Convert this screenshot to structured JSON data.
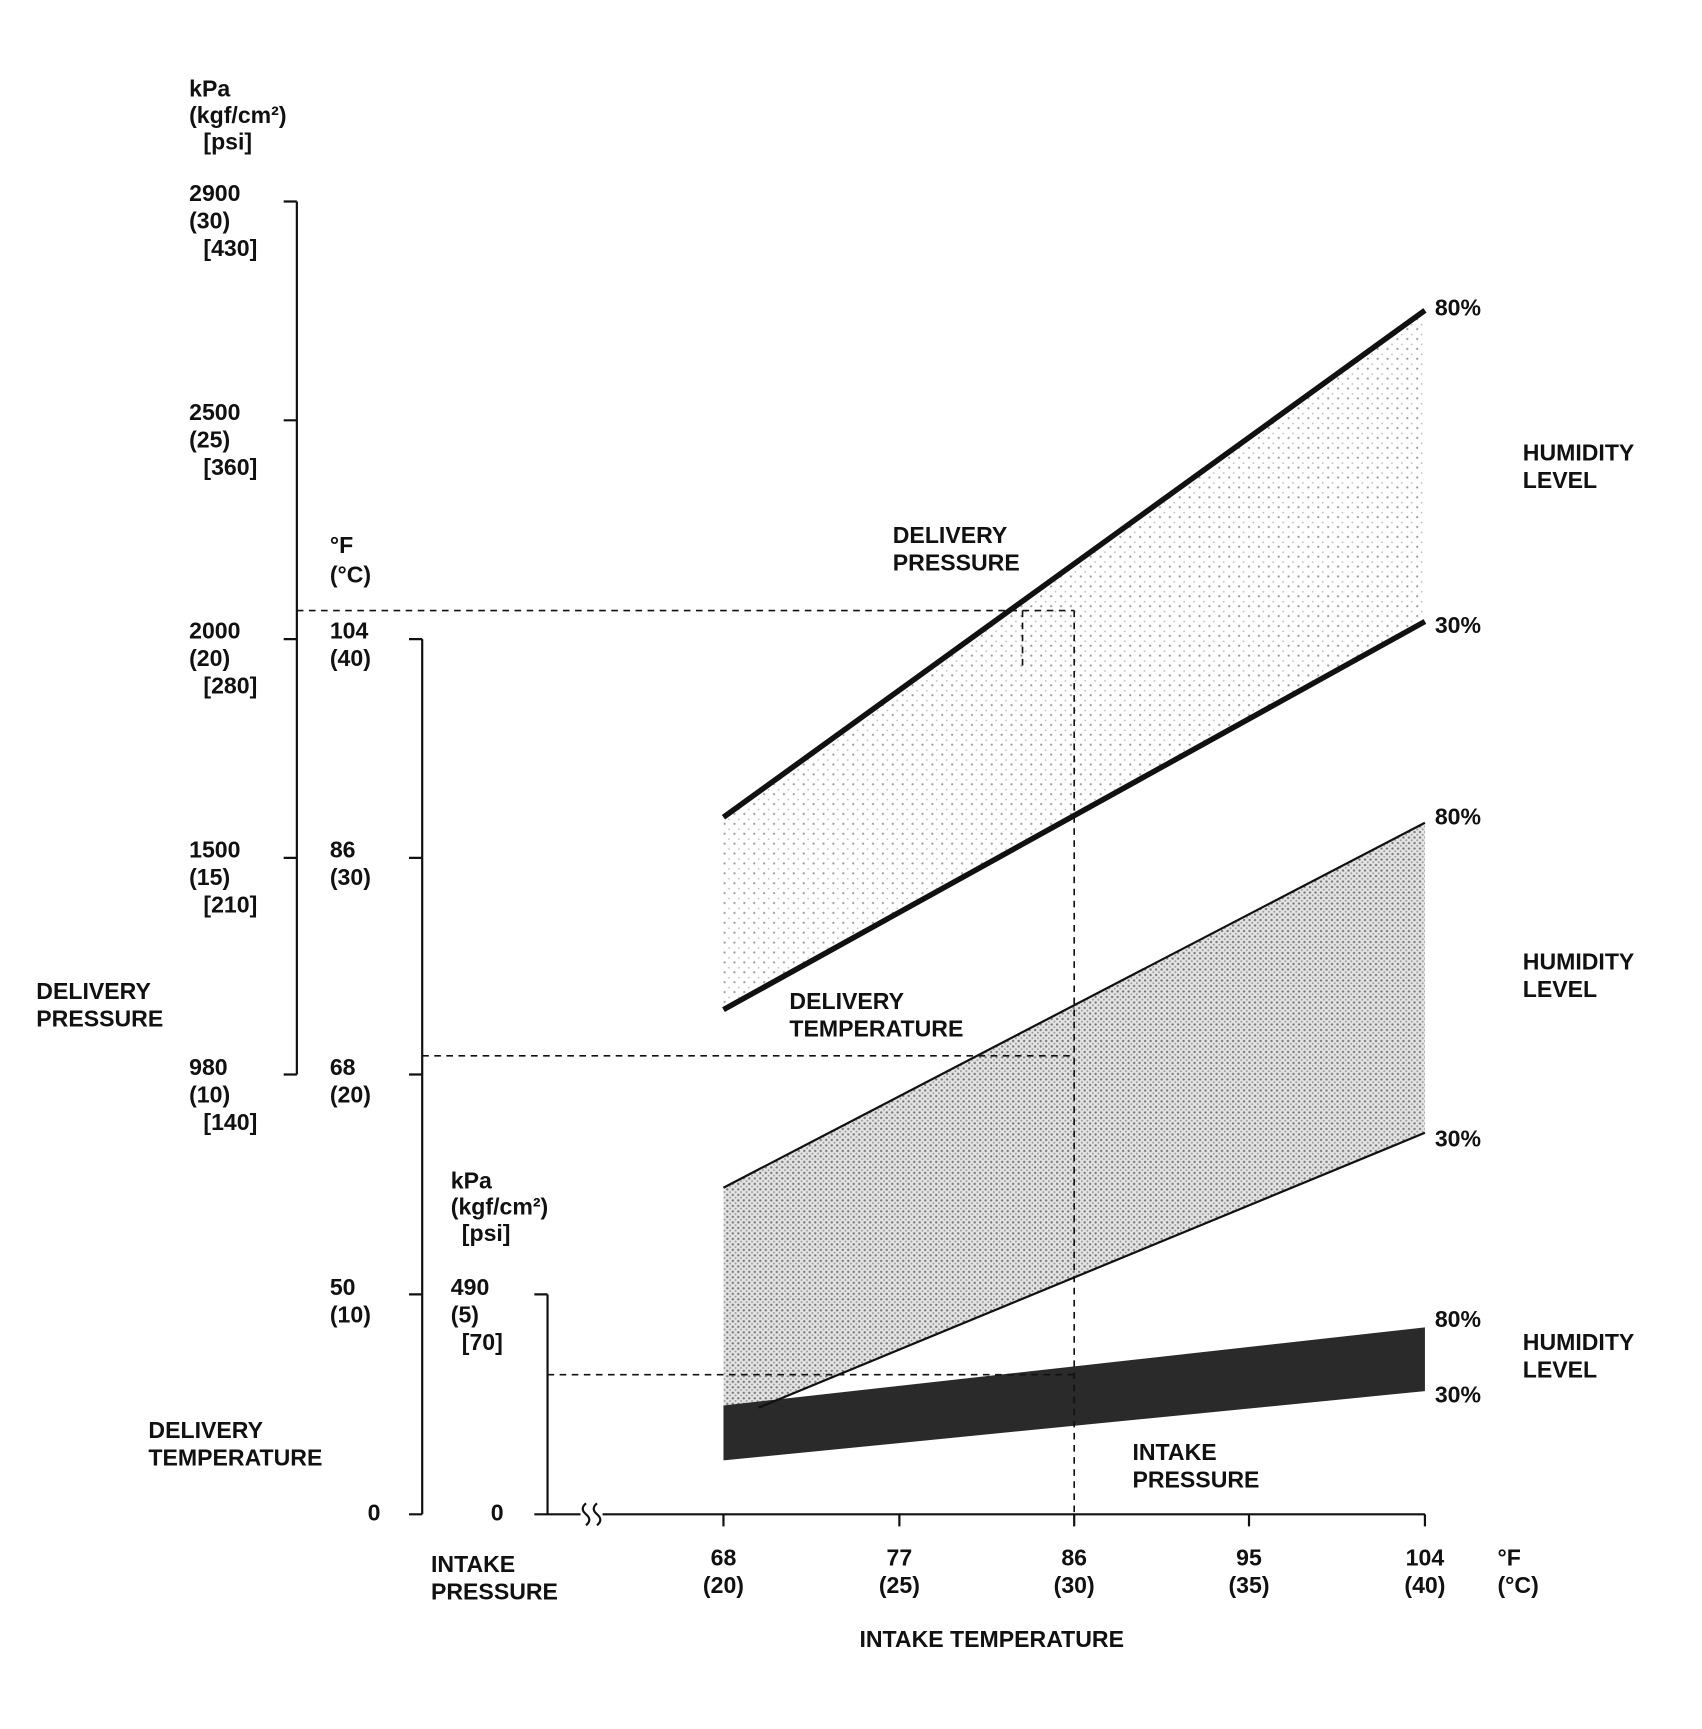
{
  "delivery_pressure_axis": {
    "units": [
      "kPa",
      "(kgf/cm²)",
      "[psi]"
    ],
    "ticks": [
      [
        "2900",
        "(30)",
        "[430]"
      ],
      [
        "2500",
        "(25)",
        "[360]"
      ],
      [
        "2000",
        "(20)",
        "[280]"
      ],
      [
        "1500",
        "(15)",
        "[210]"
      ],
      [
        "980",
        "(10)",
        "[140]"
      ]
    ],
    "title": [
      "DELIVERY",
      "PRESSURE"
    ]
  },
  "delivery_temperature_axis": {
    "units": [
      "°F",
      "(°C)"
    ],
    "ticks": [
      [
        "104",
        "(40)"
      ],
      [
        "86",
        "(30)"
      ],
      [
        "68",
        "(20)"
      ],
      [
        "50",
        "(10)"
      ],
      [
        "0"
      ]
    ],
    "title": [
      "DELIVERY",
      "TEMPERATURE"
    ]
  },
  "intake_pressure_axis": {
    "units": [
      "kPa",
      "(kgf/cm²)",
      "[psi]"
    ],
    "ticks": [
      [
        "490",
        "(5)",
        "[70]"
      ],
      [
        "0"
      ]
    ],
    "title": [
      "INTAKE",
      "PRESSURE"
    ]
  },
  "intake_temperature_axis": {
    "units": [
      "°F",
      "(°C)"
    ],
    "ticks": [
      [
        "68",
        "(20)"
      ],
      [
        "77",
        "(25)"
      ],
      [
        "86",
        "(30)"
      ],
      [
        "95",
        "(35)"
      ],
      [
        "104",
        "(40)"
      ]
    ],
    "title": "INTAKE TEMPERATURE"
  },
  "bands": [
    {
      "label": [
        "DELIVERY",
        "PRESSURE"
      ],
      "upper": "80%",
      "lower": "30%",
      "side_label": [
        "HUMIDITY",
        "LEVEL"
      ]
    },
    {
      "label": [
        "DELIVERY",
        "TEMPERATURE"
      ],
      "upper": "80%",
      "lower": "30%",
      "side_label": [
        "HUMIDITY",
        "LEVEL"
      ]
    },
    {
      "label": [
        "INTAKE",
        "PRESSURE"
      ],
      "upper": "80%",
      "lower": "30%",
      "side_label": [
        "HUMIDITY",
        "LEVEL"
      ]
    }
  ]
}
